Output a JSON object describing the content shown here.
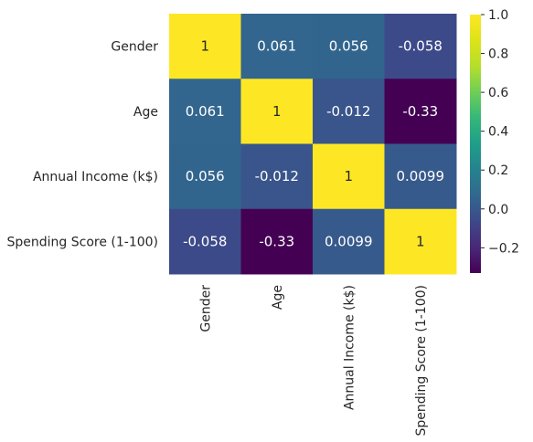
{
  "chart_data": {
    "type": "heatmap",
    "title": "",
    "row_labels": [
      "Gender",
      "Age",
      "Annual Income (k$)",
      "Spending Score (1-100)"
    ],
    "col_labels": [
      "Gender",
      "Age",
      "Annual Income (k$)",
      "Spending Score (1-100)"
    ],
    "values": [
      [
        1,
        0.061,
        0.056,
        -0.058
      ],
      [
        0.061,
        1,
        -0.012,
        -0.33
      ],
      [
        0.056,
        -0.012,
        1,
        0.0099
      ],
      [
        -0.058,
        -0.33,
        0.0099,
        1
      ]
    ],
    "cell_labels": [
      [
        "1",
        "0.061",
        "0.056",
        "-0.058"
      ],
      [
        "0.061",
        "1",
        "-0.012",
        "-0.33"
      ],
      [
        "0.056",
        "-0.012",
        "1",
        "0.0099"
      ],
      [
        "-0.058",
        "-0.33",
        "0.0099",
        "1"
      ]
    ],
    "colormap": "viridis",
    "vmin": -0.33,
    "vmax": 1.0,
    "colorbar_ticks": [
      1.0,
      0.8,
      0.6,
      0.4,
      0.2,
      0.0,
      -0.2
    ],
    "colorbar_tick_labels": [
      "1.0",
      "0.8",
      "0.6",
      "0.4",
      "0.2",
      "0.0",
      "−0.2"
    ]
  }
}
